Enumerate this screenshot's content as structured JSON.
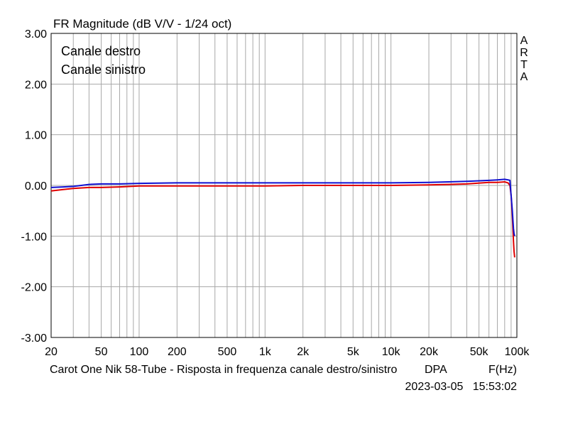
{
  "chart_data": {
    "type": "line",
    "title": "FR Magnitude (dB V/V - 1/24 oct)",
    "watermark": [
      "A",
      "R",
      "T",
      "A"
    ],
    "xscale": "log",
    "xlim": [
      20,
      100000
    ],
    "ylim": [
      -3,
      3
    ],
    "grid": true,
    "legend_position": "top-left",
    "x_tick_values": [
      20,
      50,
      100,
      200,
      500,
      1000,
      2000,
      5000,
      10000,
      20000,
      50000,
      100000
    ],
    "x_tick_labels": [
      "20",
      "50",
      "100",
      "200",
      "500",
      "1k",
      "2k",
      "5k",
      "10k",
      "20k",
      "50k",
      "100k"
    ],
    "y_tick_values": [
      3,
      2,
      1,
      0,
      -1,
      -2,
      -3
    ],
    "y_tick_labels": [
      "3.00",
      "2.00",
      "1.00",
      "0.00",
      "-1.00",
      "-2.00",
      "-3.00"
    ],
    "series": [
      {
        "name": "Canale destro",
        "color": "#e00000",
        "x": [
          20,
          25,
          30,
          40,
          50,
          70,
          100,
          200,
          500,
          1000,
          2000,
          5000,
          10000,
          20000,
          40000,
          60000,
          70000,
          80000,
          85000,
          88000,
          90000,
          92000,
          94000,
          95000,
          96000
        ],
        "y": [
          -0.11,
          -0.08,
          -0.06,
          -0.04,
          -0.04,
          -0.03,
          -0.01,
          -0.01,
          -0.01,
          -0.01,
          0.0,
          0.0,
          0.0,
          0.01,
          0.03,
          0.06,
          0.06,
          0.07,
          0.05,
          0.0,
          -0.2,
          -0.6,
          -1.1,
          -1.3,
          -1.42
        ]
      },
      {
        "name": "Canale sinistro",
        "color": "#1010d0",
        "x": [
          20,
          25,
          30,
          40,
          50,
          70,
          100,
          200,
          500,
          1000,
          2000,
          5000,
          10000,
          20000,
          40000,
          60000,
          70000,
          80000,
          85000,
          88000,
          90000,
          92000,
          94000,
          95000,
          96000
        ],
        "y": [
          -0.04,
          -0.03,
          -0.02,
          0.02,
          0.03,
          0.03,
          0.04,
          0.05,
          0.05,
          0.05,
          0.05,
          0.05,
          0.05,
          0.06,
          0.08,
          0.1,
          0.11,
          0.12,
          0.11,
          0.1,
          -0.2,
          -0.5,
          -0.85,
          -0.95,
          -1.0
        ]
      }
    ]
  },
  "footer": {
    "caption": "Carot One Nik 58-Tube - Risposta in frequenza canale destro/sinistro",
    "dpa": "DPA",
    "xunit": "F(Hz)",
    "timestamp": "2023-03-05   15:53:02"
  }
}
